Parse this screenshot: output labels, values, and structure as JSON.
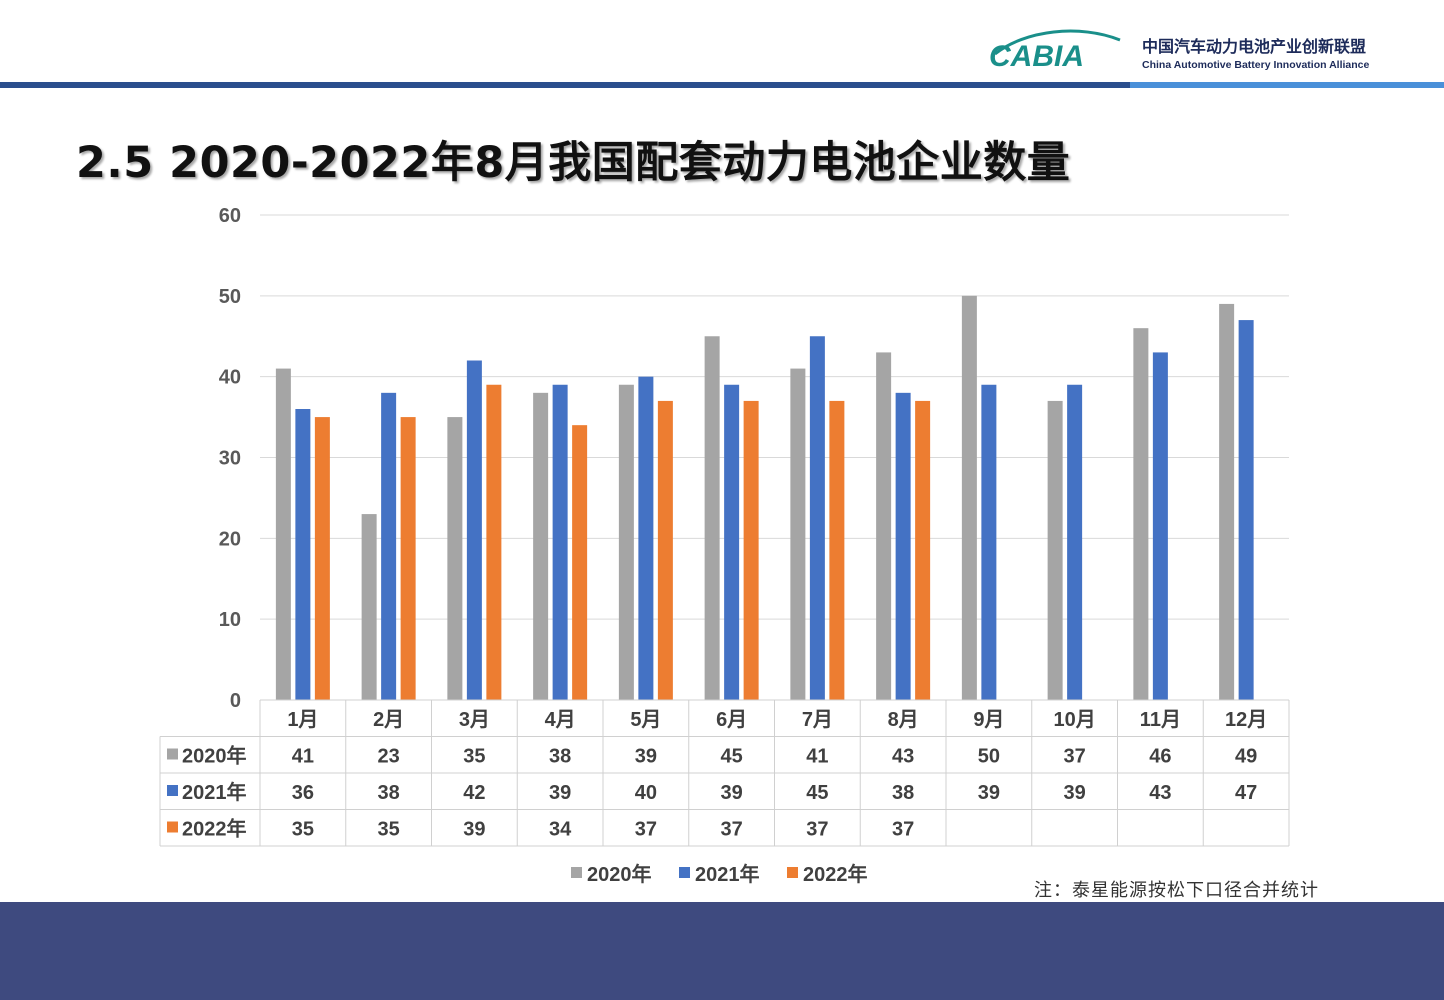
{
  "header": {
    "logo_mark": "CABIA",
    "org_name_cn": "中国汽车动力电池产业创新联盟",
    "org_name_en": "China Automotive Battery Innovation Alliance"
  },
  "page_title": "2.5  2020-2022年8月我国配套动力电池企业数量",
  "note": "注：泰星能源按松下口径合并统计",
  "colors": {
    "s2020": "#a5a5a5",
    "s2021": "#4472c4",
    "s2022": "#ed7d31",
    "header_line": "#2a4e8d",
    "footer": "#3e4a7f"
  },
  "chart_data": {
    "type": "bar",
    "title": "",
    "xlabel": "",
    "ylabel": "",
    "ylim": [
      0,
      60
    ],
    "yticks": [
      0,
      10,
      20,
      30,
      40,
      50,
      60
    ],
    "grid": true,
    "legend_position": "bottom",
    "data_table": true,
    "categories": [
      "1月",
      "2月",
      "3月",
      "4月",
      "5月",
      "6月",
      "7月",
      "8月",
      "9月",
      "10月",
      "11月",
      "12月"
    ],
    "series": [
      {
        "name": "2020年",
        "color": "#a5a5a5",
        "values": [
          41,
          23,
          35,
          38,
          39,
          45,
          41,
          43,
          50,
          37,
          46,
          49
        ]
      },
      {
        "name": "2021年",
        "color": "#4472c4",
        "values": [
          36,
          38,
          42,
          39,
          40,
          39,
          45,
          38,
          39,
          39,
          43,
          47
        ]
      },
      {
        "name": "2022年",
        "color": "#ed7d31",
        "values": [
          35,
          35,
          39,
          34,
          37,
          37,
          37,
          37,
          null,
          null,
          null,
          null
        ]
      }
    ]
  }
}
